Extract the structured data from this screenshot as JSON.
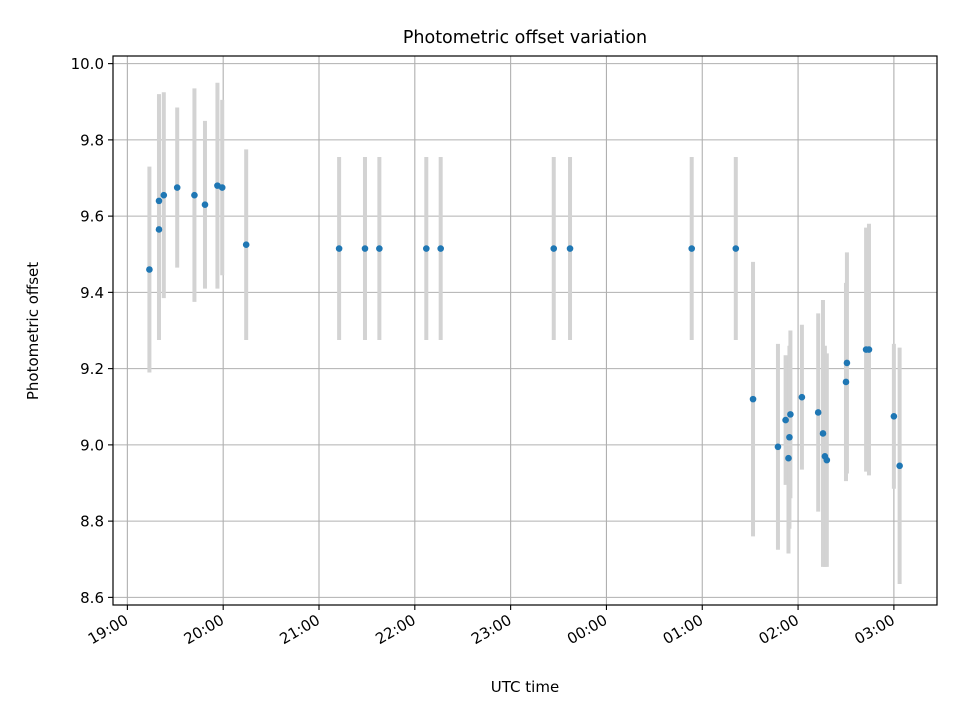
{
  "chart_data": {
    "type": "scatter",
    "title": "Photometric offset variation",
    "xlabel": "UTC time",
    "ylabel": "Photometric offset",
    "x_unit": "UTC hour, continuing past midnight (24 = 00:00 next day)",
    "xlim": [
      18.85,
      27.45
    ],
    "ylim": [
      8.58,
      10.02
    ],
    "x_ticks": [
      19,
      20,
      21,
      22,
      23,
      24,
      25,
      26,
      27
    ],
    "x_tick_labels": [
      "19:00",
      "20:00",
      "21:00",
      "22:00",
      "23:00",
      "00:00",
      "01:00",
      "02:00",
      "03:00"
    ],
    "y_ticks": [
      8.6,
      8.8,
      9.0,
      9.2,
      9.4,
      9.6,
      9.8,
      10.0
    ],
    "y_tick_labels": [
      "8.6",
      "8.8",
      "9.0",
      "9.2",
      "9.4",
      "9.6",
      "9.8",
      "10.0"
    ],
    "grid": true,
    "colors": {
      "marker": "#1f77b4",
      "errorbar": "#d3d3d3",
      "grid": "#b0b0b0",
      "axis": "#000000"
    },
    "points": [
      {
        "x": 19.23,
        "y": 9.46,
        "err": 0.27
      },
      {
        "x": 19.33,
        "y": 9.565,
        "err": 0.29
      },
      {
        "x": 19.33,
        "y": 9.64,
        "err": 0.28
      },
      {
        "x": 19.38,
        "y": 9.655,
        "err": 0.27
      },
      {
        "x": 19.52,
        "y": 9.675,
        "err": 0.21
      },
      {
        "x": 19.7,
        "y": 9.655,
        "err": 0.28
      },
      {
        "x": 19.81,
        "y": 9.63,
        "err": 0.22
      },
      {
        "x": 19.94,
        "y": 9.68,
        "err": 0.27
      },
      {
        "x": 19.99,
        "y": 9.675,
        "err": 0.23
      },
      {
        "x": 20.24,
        "y": 9.525,
        "err": 0.25
      },
      {
        "x": 21.21,
        "y": 9.515,
        "err": 0.24
      },
      {
        "x": 21.48,
        "y": 9.515,
        "err": 0.24
      },
      {
        "x": 21.63,
        "y": 9.515,
        "err": 0.24
      },
      {
        "x": 22.12,
        "y": 9.515,
        "err": 0.24
      },
      {
        "x": 22.27,
        "y": 9.515,
        "err": 0.24
      },
      {
        "x": 23.45,
        "y": 9.515,
        "err": 0.24
      },
      {
        "x": 23.62,
        "y": 9.515,
        "err": 0.24
      },
      {
        "x": 24.89,
        "y": 9.515,
        "err": 0.24
      },
      {
        "x": 25.35,
        "y": 9.515,
        "err": 0.24
      },
      {
        "x": 25.53,
        "y": 9.12,
        "err": 0.36
      },
      {
        "x": 25.79,
        "y": 8.995,
        "err": 0.27
      },
      {
        "x": 25.87,
        "y": 9.065,
        "err": 0.17
      },
      {
        "x": 25.9,
        "y": 8.965,
        "err": 0.25
      },
      {
        "x": 25.91,
        "y": 9.02,
        "err": 0.24
      },
      {
        "x": 25.92,
        "y": 9.08,
        "err": 0.22
      },
      {
        "x": 26.04,
        "y": 9.125,
        "err": 0.19
      },
      {
        "x": 26.21,
        "y": 9.085,
        "err": 0.26
      },
      {
        "x": 26.26,
        "y": 9.03,
        "err": 0.35
      },
      {
        "x": 26.28,
        "y": 8.97,
        "err": 0.29
      },
      {
        "x": 26.3,
        "y": 8.96,
        "err": 0.28
      },
      {
        "x": 26.5,
        "y": 9.165,
        "err": 0.26
      },
      {
        "x": 26.51,
        "y": 9.215,
        "err": 0.29
      },
      {
        "x": 26.71,
        "y": 9.25,
        "err": 0.32
      },
      {
        "x": 26.74,
        "y": 9.25,
        "err": 0.33
      },
      {
        "x": 27.0,
        "y": 9.075,
        "err": 0.19
      },
      {
        "x": 27.06,
        "y": 8.945,
        "err": 0.31
      }
    ]
  }
}
